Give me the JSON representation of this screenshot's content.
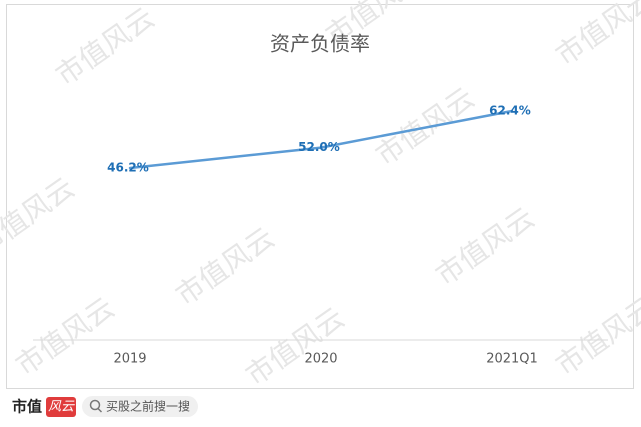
{
  "chart_data": {
    "type": "line",
    "title": "资产负债率",
    "categories": [
      "2019",
      "2020",
      "2021Q1"
    ],
    "series": [
      {
        "name": "资产负债率",
        "color": "#5b9bd5",
        "values": [
          46.2,
          52.0,
          62.4
        ],
        "value_labels": [
          "46.2%",
          "52.0%",
          "62.4%"
        ]
      }
    ]
  },
  "watermark": "市值风云",
  "footer": {
    "brand": "市值",
    "brand_mark": "风云",
    "search": "买股之前搜一搜"
  }
}
